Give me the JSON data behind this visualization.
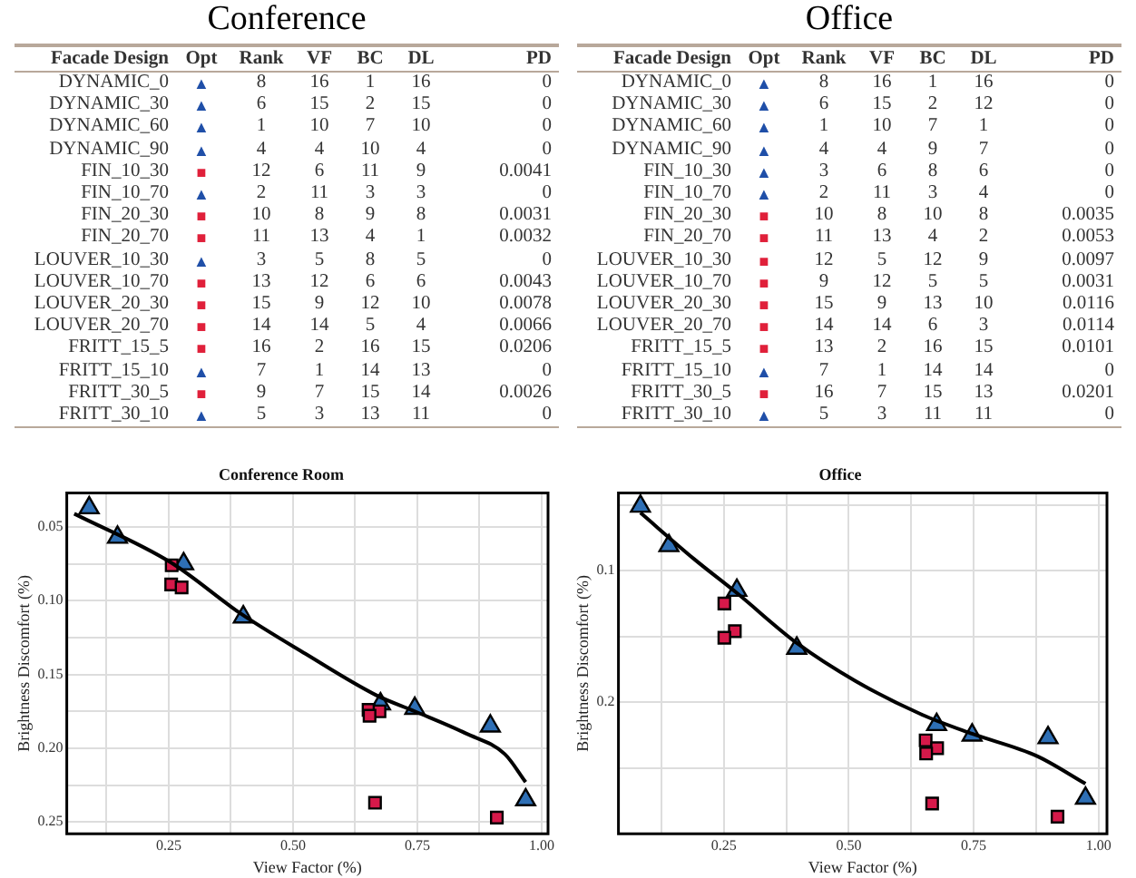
{
  "chart_data": [
    {
      "type": "other",
      "title": "Conference",
      "categories": [
        "Facade Design",
        "Opt",
        "Rank",
        "VF",
        "BC",
        "DL",
        "PD"
      ],
      "colors": [
        "#1f4fa8",
        "#1f4fa8",
        "#1f4fa8",
        "#1f4fa8",
        "#e0203a",
        "#1f4fa8",
        "#e0203a",
        "#e0203a",
        "#1f4fa8",
        "#e0203a",
        "#e0203a",
        "#e0203a",
        "#e0203a",
        "#1f4fa8",
        "#e0203a",
        "#1f4fa8"
      ],
      "cell_labels": [
        [
          "DYNAMIC_0",
          "▲",
          "8",
          "16",
          "1",
          "16",
          "0"
        ],
        [
          "DYNAMIC_30",
          "▲",
          "6",
          "15",
          "2",
          "15",
          "0"
        ],
        [
          "DYNAMIC_60",
          "▲",
          "1",
          "10",
          "7",
          "10",
          "0"
        ],
        [
          "DYNAMIC_90",
          "▲",
          "4",
          "4",
          "10",
          "4",
          "0"
        ],
        [
          "FIN_10_30",
          "■",
          "12",
          "6",
          "11",
          "9",
          "0.0041"
        ],
        [
          "FIN_10_70",
          "▲",
          "2",
          "11",
          "3",
          "3",
          "0"
        ],
        [
          "FIN_20_30",
          "■",
          "10",
          "8",
          "9",
          "8",
          "0.0031"
        ],
        [
          "FIN_20_70",
          "■",
          "11",
          "13",
          "4",
          "1",
          "0.0032"
        ],
        [
          "LOUVER_10_30",
          "▲",
          "3",
          "5",
          "8",
          "5",
          "0"
        ],
        [
          "LOUVER_10_70",
          "■",
          "13",
          "12",
          "6",
          "6",
          "0.0043"
        ],
        [
          "LOUVER_20_30",
          "■",
          "15",
          "9",
          "12",
          "10",
          "0.0078"
        ],
        [
          "LOUVER_20_70",
          "■",
          "14",
          "14",
          "5",
          "4",
          "0.0066"
        ],
        [
          "FRITT_15_5",
          "■",
          "16",
          "2",
          "16",
          "15",
          "0.0206"
        ],
        [
          "FRITT_15_10",
          "▲",
          "7",
          "1",
          "14",
          "13",
          "0"
        ],
        [
          "FRITT_30_5",
          "■",
          "9",
          "7",
          "15",
          "14",
          "0.0026"
        ],
        [
          "FRITT_30_10",
          "▲",
          "5",
          "3",
          "13",
          "11",
          "0"
        ]
      ]
    },
    {
      "type": "other",
      "title": "Office",
      "categories": [
        "Facade Design",
        "Opt",
        "Rank",
        "VF",
        "BC",
        "DL",
        "PD"
      ],
      "colors": [
        "#1f4fa8",
        "#1f4fa8",
        "#1f4fa8",
        "#1f4fa8",
        "#1f4fa8",
        "#1f4fa8",
        "#e0203a",
        "#e0203a",
        "#e0203a",
        "#e0203a",
        "#e0203a",
        "#e0203a",
        "#e0203a",
        "#1f4fa8",
        "#e0203a",
        "#1f4fa8"
      ],
      "cell_labels": [
        [
          "DYNAMIC_0",
          "▲",
          "8",
          "16",
          "1",
          "16",
          "0"
        ],
        [
          "DYNAMIC_30",
          "▲",
          "6",
          "15",
          "2",
          "12",
          "0"
        ],
        [
          "DYNAMIC_60",
          "▲",
          "1",
          "10",
          "7",
          "1",
          "0"
        ],
        [
          "DYNAMIC_90",
          "▲",
          "4",
          "4",
          "9",
          "7",
          "0"
        ],
        [
          "FIN_10_30",
          "▲",
          "3",
          "6",
          "8",
          "6",
          "0"
        ],
        [
          "FIN_10_70",
          "▲",
          "2",
          "11",
          "3",
          "4",
          "0"
        ],
        [
          "FIN_20_30",
          "■",
          "10",
          "8",
          "10",
          "8",
          "0.0035"
        ],
        [
          "FIN_20_70",
          "■",
          "11",
          "13",
          "4",
          "2",
          "0.0053"
        ],
        [
          "LOUVER_10_30",
          "■",
          "12",
          "5",
          "12",
          "9",
          "0.0097"
        ],
        [
          "LOUVER_10_70",
          "■",
          "9",
          "12",
          "5",
          "5",
          "0.0031"
        ],
        [
          "LOUVER_20_30",
          "■",
          "15",
          "9",
          "13",
          "10",
          "0.0116"
        ],
        [
          "LOUVER_20_70",
          "■",
          "14",
          "14",
          "6",
          "3",
          "0.0114"
        ],
        [
          "FRITT_15_5",
          "■",
          "13",
          "2",
          "16",
          "15",
          "0.0101"
        ],
        [
          "FRITT_15_10",
          "▲",
          "7",
          "1",
          "14",
          "14",
          "0"
        ],
        [
          "FRITT_30_5",
          "■",
          "16",
          "7",
          "15",
          "13",
          "0.0201"
        ],
        [
          "FRITT_30_10",
          "▲",
          "5",
          "3",
          "11",
          "11",
          "0"
        ]
      ]
    },
    {
      "type": "scatter",
      "title": "Conference Room",
      "xlabel": "View Factor (%)",
      "ylabel": "Brightness Discomfort (%)",
      "grid": true,
      "legend": false,
      "xlim": [
        0.045,
        1.013
      ],
      "xticks": [
        {
          "value": 0.125,
          "label": null
        },
        {
          "value": 0.25,
          "label": "0.25"
        },
        {
          "value": 0.375,
          "label": null
        },
        {
          "value": 0.5,
          "label": "0.50"
        },
        {
          "value": 0.625,
          "label": null
        },
        {
          "value": 0.75,
          "label": "0.75"
        },
        {
          "value": 0.875,
          "label": null
        },
        {
          "value": 1,
          "label": "1.00"
        }
      ],
      "ylim": [
        0.258,
        0.027
      ],
      "yticks": [
        {
          "value": 0.05,
          "label": "0.05"
        },
        {
          "value": 0.075,
          "label": null
        },
        {
          "value": 0.1,
          "label": "0.10"
        },
        {
          "value": 0.125,
          "label": null
        },
        {
          "value": 0.15,
          "label": "0.15"
        },
        {
          "value": 0.175,
          "label": null
        },
        {
          "value": 0.2,
          "label": "0.20"
        },
        {
          "value": 0.225,
          "label": null
        },
        {
          "value": 0.25,
          "label": "0.25"
        }
      ],
      "series": [
        {
          "type": "line",
          "color": "#000000",
          "marker": "none",
          "x": [
            0.06,
            0.254,
            0.396,
            0.525,
            0.667,
            0.745,
            0.848,
            0.926,
            0.968
          ],
          "values": [
            0.041,
            0.074,
            0.109,
            0.136,
            0.164,
            0.175,
            0.19,
            0.204,
            0.223
          ]
        },
        {
          "marker": "square",
          "color": "#d6194a",
          "x": [
            0.256,
            0.255,
            0.276,
            0.652,
            0.674,
            0.654,
            0.665,
            0.91
          ],
          "values": [
            0.076,
            0.089,
            0.091,
            0.174,
            0.175,
            0.178,
            0.237,
            0.247
          ]
        },
        {
          "marker": "triangle",
          "color": "#2e6fb5",
          "x": [
            0.09,
            0.147,
            0.28,
            0.4,
            0.676,
            0.745,
            0.897,
            0.968
          ],
          "values": [
            0.037,
            0.057,
            0.075,
            0.111,
            0.17,
            0.173,
            0.185,
            0.235
          ]
        }
      ]
    },
    {
      "type": "scatter",
      "title": "Office",
      "xlabel": "View Factor (%)",
      "ylabel": "Brightness Discomfort (%)",
      "grid": true,
      "legend": false,
      "xlim": [
        0.039,
        1.017
      ],
      "xticks": [
        {
          "value": 0.125,
          "label": null
        },
        {
          "value": 0.25,
          "label": "0.25"
        },
        {
          "value": 0.375,
          "label": null
        },
        {
          "value": 0.5,
          "label": "0.50"
        },
        {
          "value": 0.625,
          "label": null
        },
        {
          "value": 0.75,
          "label": "0.75"
        },
        {
          "value": 0.875,
          "label": null
        },
        {
          "value": 1,
          "label": "1.00"
        }
      ],
      "ylim": [
        0.3,
        0.041
      ],
      "yticks": [
        {
          "value": 0.05,
          "label": null
        },
        {
          "value": 0.1,
          "label": "0.1"
        },
        {
          "value": 0.15,
          "label": null
        },
        {
          "value": 0.2,
          "label": "0.2"
        },
        {
          "value": 0.25,
          "label": null
        }
      ],
      "series": [
        {
          "type": "line",
          "color": "#000000",
          "marker": "none",
          "x": [
            0.083,
            0.19,
            0.276,
            0.396,
            0.514,
            0.644,
            0.747,
            0.877,
            0.974
          ],
          "values": [
            0.056,
            0.091,
            0.117,
            0.155,
            0.184,
            0.209,
            0.224,
            0.241,
            0.262
          ]
        },
        {
          "marker": "square",
          "color": "#d6194a",
          "x": [
            0.251,
            0.272,
            0.251,
            0.654,
            0.677,
            0.655,
            0.667,
            0.918
          ],
          "values": [
            0.125,
            0.146,
            0.151,
            0.229,
            0.235,
            0.239,
            0.277,
            0.287
          ]
        },
        {
          "marker": "triangle",
          "color": "#2e6fb5",
          "x": [
            0.083,
            0.14,
            0.276,
            0.396,
            0.676,
            0.747,
            0.899,
            0.974
          ],
          "values": [
            0.051,
            0.081,
            0.115,
            0.159,
            0.217,
            0.225,
            0.227,
            0.273
          ]
        }
      ]
    }
  ]
}
